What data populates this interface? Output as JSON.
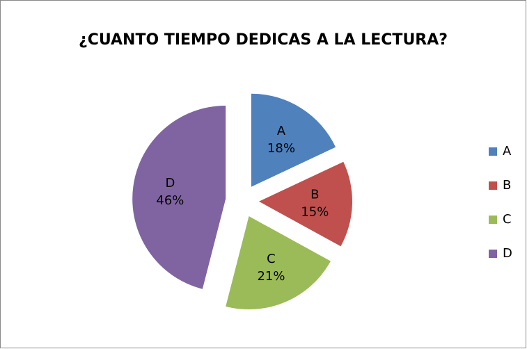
{
  "chart_data": {
    "type": "pie",
    "title": "¿CUANTO TIEMPO DEDICAS A LA LECTURA?",
    "categories": [
      "A",
      "B",
      "C",
      "D"
    ],
    "values": [
      18,
      15,
      21,
      46
    ],
    "value_labels": [
      "18%",
      "15%",
      "21%",
      "46%"
    ],
    "colors": [
      "#4f81bd",
      "#c0504d",
      "#9bbb59",
      "#8064a2"
    ],
    "legend": "right"
  }
}
